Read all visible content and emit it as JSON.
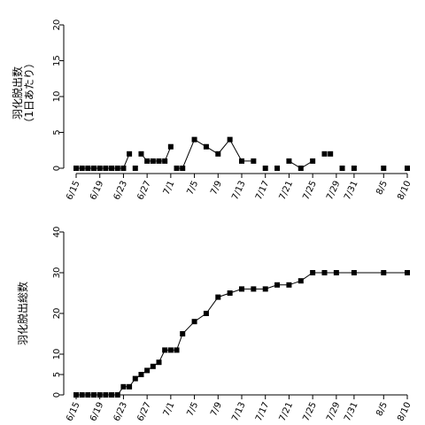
{
  "chart_data": [
    {
      "type": "line",
      "ylabel_lines": [
        "羽化脱出数",
        "（1日あたり）"
      ],
      "ylim": [
        0,
        21
      ],
      "yticks": [
        0,
        5,
        10,
        15,
        20
      ],
      "xticks": [
        {
          "x": 0,
          "label": "6/15"
        },
        {
          "x": 4,
          "label": "6/19"
        },
        {
          "x": 8,
          "label": "6/23"
        },
        {
          "x": 12,
          "label": "6/27"
        },
        {
          "x": 16,
          "label": "7/1"
        },
        {
          "x": 20,
          "label": "7/5"
        },
        {
          "x": 24,
          "label": "7/9"
        },
        {
          "x": 28,
          "label": "7/13"
        },
        {
          "x": 32,
          "label": "7/17"
        },
        {
          "x": 36,
          "label": "7/21"
        },
        {
          "x": 40,
          "label": "7/25"
        },
        {
          "x": 44,
          "label": "7/29"
        },
        {
          "x": 47,
          "label": "7/31"
        },
        {
          "x": 52,
          "label": "8/5"
        },
        {
          "x": 56,
          "label": "8/10"
        }
      ],
      "xlim": [
        0,
        56
      ],
      "x": [
        0,
        1,
        2,
        3,
        4,
        5,
        6,
        7,
        8,
        9,
        10,
        11,
        12,
        13,
        14,
        15,
        16,
        17,
        18,
        20,
        22,
        24,
        26,
        28,
        30,
        32,
        34,
        36,
        38,
        40,
        42,
        43,
        45,
        47,
        52,
        56
      ],
      "values": [
        0,
        0,
        0,
        0,
        0,
        0,
        0,
        0,
        0,
        2,
        0,
        2,
        1,
        1,
        1,
        1,
        3,
        0,
        0,
        4,
        3,
        2,
        4,
        1,
        1,
        0,
        0,
        1,
        0,
        1,
        2,
        2,
        0,
        0,
        0,
        0
      ],
      "segments": [
        [
          0,
          9
        ],
        [
          11,
          16
        ],
        [
          17,
          19
        ],
        [
          19,
          24
        ],
        [
          27,
          29
        ]
      ]
    },
    {
      "type": "line",
      "ylabel": "羽化脱出総数",
      "ylim": [
        0,
        40
      ],
      "yticks": [
        0,
        5,
        10,
        20,
        30,
        40
      ],
      "xticks": [
        {
          "x": 0,
          "label": "6/15"
        },
        {
          "x": 4,
          "label": "6/19"
        },
        {
          "x": 8,
          "label": "6/23"
        },
        {
          "x": 12,
          "label": "6/27"
        },
        {
          "x": 16,
          "label": "7/1"
        },
        {
          "x": 20,
          "label": "7/5"
        },
        {
          "x": 24,
          "label": "7/9"
        },
        {
          "x": 28,
          "label": "7/13"
        },
        {
          "x": 32,
          "label": "7/17"
        },
        {
          "x": 36,
          "label": "7/21"
        },
        {
          "x": 40,
          "label": "7/25"
        },
        {
          "x": 44,
          "label": "7/29"
        },
        {
          "x": 47,
          "label": "7/31"
        },
        {
          "x": 52,
          "label": "8/5"
        },
        {
          "x": 56,
          "label": "8/10"
        }
      ],
      "xlim": [
        0,
        56
      ],
      "x": [
        0,
        1,
        2,
        3,
        4,
        5,
        6,
        7,
        8,
        9,
        10,
        11,
        12,
        13,
        14,
        15,
        16,
        17,
        18,
        20,
        22,
        24,
        26,
        28,
        30,
        32,
        34,
        36,
        38,
        40,
        42,
        44,
        47,
        52,
        56
      ],
      "values": [
        0,
        0,
        0,
        0,
        0,
        0,
        0,
        0,
        2,
        2,
        4,
        5,
        6,
        7,
        8,
        11,
        11,
        11,
        15,
        18,
        20,
        24,
        25,
        26,
        26,
        26,
        27,
        27,
        28,
        30,
        30,
        30,
        30,
        30,
        30
      ]
    }
  ]
}
